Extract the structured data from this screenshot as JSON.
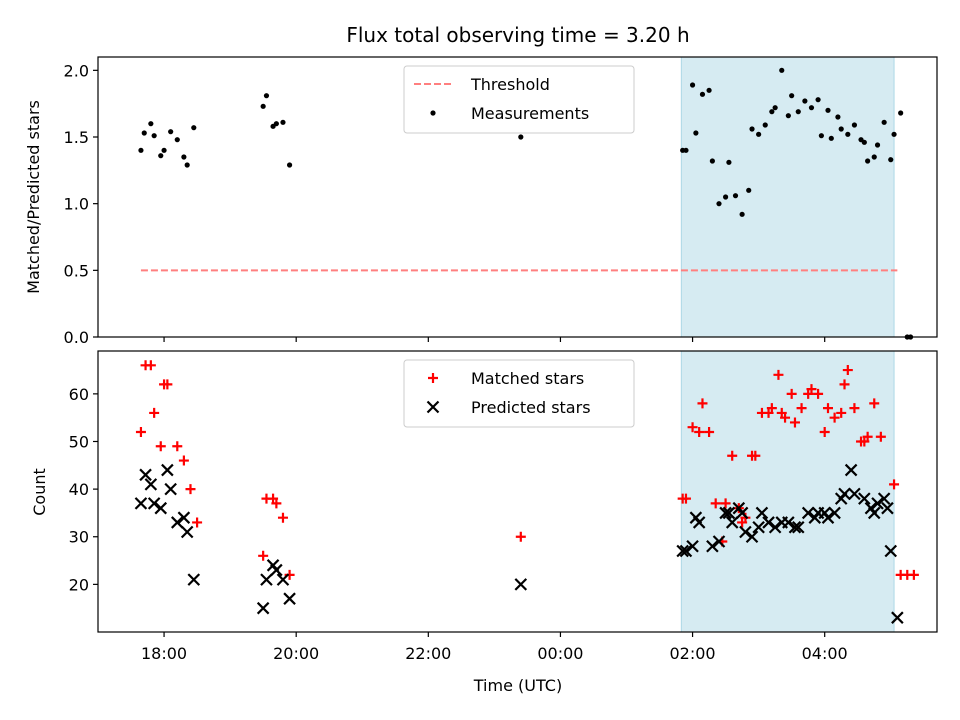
{
  "chart_data": {
    "type": "scatter",
    "title": "Flux total observing time = 3.20 h",
    "xlabel": "Time (UTC)",
    "x_unit": "hours since 00:00 UTC",
    "xlim": [
      -7.0,
      5.7
    ],
    "xticks": [
      {
        "value": -6,
        "label": "18:00"
      },
      {
        "value": -4,
        "label": "20:00"
      },
      {
        "value": -2,
        "label": "22:00"
      },
      {
        "value": 0,
        "label": "00:00"
      },
      {
        "value": 2,
        "label": "02:00"
      },
      {
        "value": 4,
        "label": "04:00"
      }
    ],
    "shaded_region": {
      "x_start": 1.83,
      "x_end": 5.05,
      "color": "#add8e6"
    },
    "panels": [
      {
        "name": "ratio",
        "ylabel": "Matched/Predicted stars",
        "ylim": [
          0,
          2.1
        ],
        "yticks": [
          {
            "value": 0,
            "label": "0.0"
          },
          {
            "value": 0.5,
            "label": "0.5"
          },
          {
            "value": 1.0,
            "label": "1.0"
          },
          {
            "value": 1.5,
            "label": "1.5"
          },
          {
            "value": 2.0,
            "label": "2.0"
          }
        ],
        "threshold": {
          "name": "Threshold",
          "value": 0.5,
          "x_start": -6.35,
          "x_end": 5.1,
          "color": "#ff7f7f"
        },
        "legend": [
          "Threshold",
          "Measurements"
        ],
        "series": [
          {
            "name": "Measurements",
            "marker": "dot",
            "color": "#000000",
            "points": [
              [
                -6.35,
                1.4
              ],
              [
                -6.3,
                1.53
              ],
              [
                -6.2,
                1.6
              ],
              [
                -6.15,
                1.51
              ],
              [
                -6.05,
                1.36
              ],
              [
                -6.0,
                1.4
              ],
              [
                -5.9,
                1.54
              ],
              [
                -5.8,
                1.48
              ],
              [
                -5.7,
                1.35
              ],
              [
                -5.65,
                1.29
              ],
              [
                -5.55,
                1.57
              ],
              [
                -4.5,
                1.73
              ],
              [
                -4.45,
                1.81
              ],
              [
                -4.35,
                1.58
              ],
              [
                -4.3,
                1.6
              ],
              [
                -4.2,
                1.61
              ],
              [
                -4.1,
                1.29
              ],
              [
                -0.6,
                1.5
              ],
              [
                1.85,
                1.4
              ],
              [
                1.9,
                1.4
              ],
              [
                2.0,
                1.89
              ],
              [
                2.05,
                1.53
              ],
              [
                2.15,
                1.82
              ],
              [
                2.25,
                1.85
              ],
              [
                2.3,
                1.32
              ],
              [
                2.4,
                1.0
              ],
              [
                2.5,
                1.05
              ],
              [
                2.55,
                1.31
              ],
              [
                2.65,
                1.06
              ],
              [
                2.75,
                0.92
              ],
              [
                2.85,
                1.1
              ],
              [
                2.9,
                1.56
              ],
              [
                3.0,
                1.52
              ],
              [
                3.1,
                1.59
              ],
              [
                3.2,
                1.69
              ],
              [
                3.25,
                1.72
              ],
              [
                3.35,
                2.0
              ],
              [
                3.45,
                1.66
              ],
              [
                3.5,
                1.81
              ],
              [
                3.6,
                1.69
              ],
              [
                3.7,
                1.77
              ],
              [
                3.8,
                1.72
              ],
              [
                3.9,
                1.78
              ],
              [
                3.95,
                1.51
              ],
              [
                4.05,
                1.7
              ],
              [
                4.1,
                1.49
              ],
              [
                4.2,
                1.65
              ],
              [
                4.25,
                1.56
              ],
              [
                4.35,
                1.52
              ],
              [
                4.45,
                1.59
              ],
              [
                4.55,
                1.48
              ],
              [
                4.6,
                1.46
              ],
              [
                4.65,
                1.32
              ],
              [
                4.75,
                1.35
              ],
              [
                4.8,
                1.44
              ],
              [
                4.9,
                1.61
              ],
              [
                5.0,
                1.33
              ],
              [
                5.05,
                1.52
              ],
              [
                5.15,
                1.68
              ],
              [
                5.25,
                0.0
              ],
              [
                5.3,
                0.0
              ]
            ]
          }
        ]
      },
      {
        "name": "counts",
        "ylabel": "Count",
        "ylim": [
          10,
          69
        ],
        "yticks": [
          {
            "value": 20,
            "label": "20"
          },
          {
            "value": 30,
            "label": "30"
          },
          {
            "value": 40,
            "label": "40"
          },
          {
            "value": 50,
            "label": "50"
          },
          {
            "value": 60,
            "label": "60"
          }
        ],
        "legend": [
          "Matched stars",
          "Predicted stars"
        ],
        "series": [
          {
            "name": "Matched stars",
            "marker": "plus",
            "color": "#ff0000",
            "points": [
              [
                -6.35,
                52
              ],
              [
                -6.28,
                66
              ],
              [
                -6.2,
                66
              ],
              [
                -6.15,
                56
              ],
              [
                -6.05,
                49
              ],
              [
                -6.0,
                62
              ],
              [
                -5.95,
                62
              ],
              [
                -5.8,
                49
              ],
              [
                -5.7,
                46
              ],
              [
                -5.6,
                40
              ],
              [
                -5.5,
                33
              ],
              [
                -4.5,
                26
              ],
              [
                -4.45,
                38
              ],
              [
                -4.35,
                38
              ],
              [
                -4.3,
                37
              ],
              [
                -4.2,
                34
              ],
              [
                -4.1,
                22
              ],
              [
                -0.6,
                30
              ],
              [
                1.85,
                38
              ],
              [
                1.9,
                38
              ],
              [
                2.0,
                53
              ],
              [
                2.1,
                52
              ],
              [
                2.15,
                58
              ],
              [
                2.25,
                52
              ],
              [
                2.35,
                37
              ],
              [
                2.45,
                29
              ],
              [
                2.5,
                37
              ],
              [
                2.6,
                47
              ],
              [
                2.7,
                36
              ],
              [
                2.75,
                33
              ],
              [
                2.8,
                34
              ],
              [
                2.9,
                47
              ],
              [
                2.95,
                47
              ],
              [
                3.05,
                56
              ],
              [
                3.15,
                56
              ],
              [
                3.2,
                57
              ],
              [
                3.3,
                64
              ],
              [
                3.35,
                56
              ],
              [
                3.4,
                55
              ],
              [
                3.5,
                60
              ],
              [
                3.55,
                54
              ],
              [
                3.65,
                57
              ],
              [
                3.75,
                60
              ],
              [
                3.8,
                61
              ],
              [
                3.9,
                60
              ],
              [
                4.0,
                52
              ],
              [
                4.05,
                57
              ],
              [
                4.15,
                55
              ],
              [
                4.25,
                56
              ],
              [
                4.3,
                62
              ],
              [
                4.35,
                65
              ],
              [
                4.45,
                57
              ],
              [
                4.55,
                50
              ],
              [
                4.6,
                50
              ],
              [
                4.65,
                51
              ],
              [
                4.75,
                58
              ],
              [
                4.85,
                51
              ],
              [
                5.05,
                41
              ],
              [
                5.15,
                22
              ],
              [
                5.25,
                22
              ],
              [
                5.35,
                22
              ]
            ]
          },
          {
            "name": "Predicted stars",
            "marker": "x",
            "color": "#000000",
            "points": [
              [
                -6.35,
                37
              ],
              [
                -6.28,
                43
              ],
              [
                -6.2,
                41
              ],
              [
                -6.15,
                37
              ],
              [
                -6.05,
                36
              ],
              [
                -5.95,
                44
              ],
              [
                -5.9,
                40
              ],
              [
                -5.8,
                33
              ],
              [
                -5.7,
                34
              ],
              [
                -5.65,
                31
              ],
              [
                -5.55,
                21
              ],
              [
                -4.5,
                15
              ],
              [
                -4.45,
                21
              ],
              [
                -4.35,
                24
              ],
              [
                -4.3,
                23
              ],
              [
                -4.2,
                21
              ],
              [
                -4.1,
                17
              ],
              [
                -0.6,
                20
              ],
              [
                1.85,
                27
              ],
              [
                1.9,
                27
              ],
              [
                2.0,
                28
              ],
              [
                2.05,
                34
              ],
              [
                2.1,
                33
              ],
              [
                2.3,
                28
              ],
              [
                2.4,
                29
              ],
              [
                2.5,
                35
              ],
              [
                2.55,
                35
              ],
              [
                2.6,
                33
              ],
              [
                2.7,
                36
              ],
              [
                2.75,
                35
              ],
              [
                2.8,
                31
              ],
              [
                2.9,
                30
              ],
              [
                3.0,
                32
              ],
              [
                3.05,
                35
              ],
              [
                3.15,
                33
              ],
              [
                3.25,
                32
              ],
              [
                3.35,
                33
              ],
              [
                3.45,
                33
              ],
              [
                3.55,
                32
              ],
              [
                3.6,
                32
              ],
              [
                3.75,
                35
              ],
              [
                3.85,
                34
              ],
              [
                3.9,
                35
              ],
              [
                4.0,
                35
              ],
              [
                4.05,
                34
              ],
              [
                4.15,
                35
              ],
              [
                4.25,
                38
              ],
              [
                4.3,
                39
              ],
              [
                4.4,
                44
              ],
              [
                4.45,
                39
              ],
              [
                4.6,
                38
              ],
              [
                4.7,
                36
              ],
              [
                4.75,
                35
              ],
              [
                4.8,
                37
              ],
              [
                4.9,
                38
              ],
              [
                4.95,
                36
              ],
              [
                5.0,
                27
              ],
              [
                5.1,
                13
              ]
            ]
          }
        ]
      }
    ]
  }
}
